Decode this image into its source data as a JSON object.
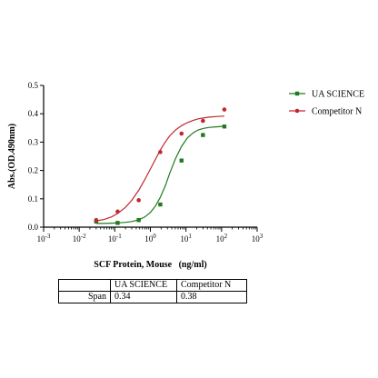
{
  "chart_data": {
    "type": "scatter",
    "ylabel": "Abs.(OD.490nm)",
    "xlabel": "SCF Protein, Mouse   (ng/ml)",
    "x_scale": "log",
    "xlim": [
      0.001,
      1000
    ],
    "ylim": [
      0,
      0.5
    ],
    "x_ticks": [
      {
        "value": 0.001,
        "base": "10",
        "exp": "-3"
      },
      {
        "value": 0.01,
        "base": "10",
        "exp": "-2"
      },
      {
        "value": 0.1,
        "base": "10",
        "exp": "-1"
      },
      {
        "value": 1,
        "base": "10",
        "exp": "0"
      },
      {
        "value": 10,
        "base": "10",
        "exp": "1"
      },
      {
        "value": 100,
        "base": "10",
        "exp": "2"
      },
      {
        "value": 1000,
        "base": "10",
        "exp": "3"
      }
    ],
    "y_ticks": [
      "0.0",
      "0.1",
      "0.2",
      "0.3",
      "0.4",
      "0.5"
    ],
    "legend_position": "right",
    "series": [
      {
        "name": "UA SCIENCE",
        "color": "#1f7a1f",
        "marker": "square",
        "x": [
          0.03,
          0.12,
          0.47,
          1.9,
          7.5,
          30,
          120
        ],
        "y": [
          0.02,
          0.015,
          0.025,
          0.08,
          0.235,
          0.325,
          0.355
        ],
        "curve_x": [
          0.03,
          0.05,
          0.08,
          0.12,
          0.2,
          0.3,
          0.47,
          0.7,
          1.0,
          1.4,
          1.9,
          2.6,
          3.5,
          5,
          7.5,
          11,
          16,
          22,
          30,
          45,
          70,
          120
        ],
        "curve_y": [
          0.013,
          0.013,
          0.014,
          0.015,
          0.017,
          0.02,
          0.026,
          0.036,
          0.052,
          0.075,
          0.105,
          0.145,
          0.19,
          0.24,
          0.285,
          0.315,
          0.333,
          0.343,
          0.348,
          0.352,
          0.354,
          0.356
        ]
      },
      {
        "name": "Competitor N",
        "color": "#c0282d",
        "marker": "circle",
        "x": [
          0.03,
          0.12,
          0.47,
          1.9,
          7.5,
          30,
          120
        ],
        "y": [
          0.025,
          0.055,
          0.095,
          0.265,
          0.33,
          0.375,
          0.415
        ],
        "curve_x": [
          0.03,
          0.05,
          0.08,
          0.12,
          0.2,
          0.3,
          0.47,
          0.7,
          1.0,
          1.4,
          1.9,
          2.6,
          3.5,
          5,
          7.5,
          11,
          16,
          22,
          30,
          45,
          70,
          120
        ],
        "curve_y": [
          0.022,
          0.027,
          0.036,
          0.048,
          0.07,
          0.095,
          0.13,
          0.168,
          0.205,
          0.24,
          0.272,
          0.3,
          0.322,
          0.342,
          0.358,
          0.369,
          0.377,
          0.382,
          0.385,
          0.388,
          0.39,
          0.392
        ]
      }
    ]
  },
  "span_table": {
    "headers": [
      "",
      "UA SCIENCE",
      "Competitor N"
    ],
    "row_label": "Span",
    "values": [
      "0.34",
      "0.38"
    ]
  }
}
